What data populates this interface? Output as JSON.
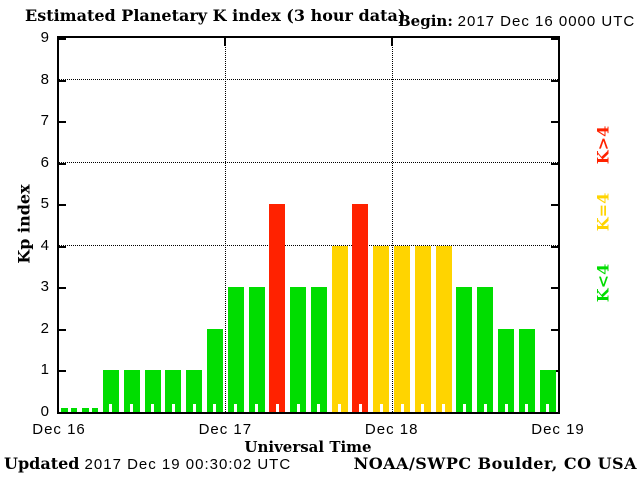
{
  "header": {
    "title": "Estimated Planetary K index (3 hour data)",
    "begin_label": "Begin:",
    "begin_value": "2017 Dec 16 0000 UTC"
  },
  "footer": {
    "updated_label": "Updated",
    "updated_value": "2017 Dec 19 00:30:02 UTC",
    "credit": "NOAA/SWPC Boulder, CO USA"
  },
  "chart_data": {
    "type": "bar",
    "title": "Estimated Planetary K index (3 hour data)",
    "xlabel": "Universal Time",
    "ylabel": "Kp index",
    "begin": "2017 Dec 16 0000 UTC",
    "hours_per_bar": 3,
    "ylim": [
      0,
      9
    ],
    "yticks": [
      0,
      1,
      2,
      3,
      4,
      5,
      6,
      7,
      8,
      9
    ],
    "grid_y_dotted": [
      4,
      6,
      8
    ],
    "x_day_labels": [
      "Dec 16",
      "Dec 17",
      "Dec 18",
      "Dec 19"
    ],
    "values": [
      0,
      0,
      1,
      1,
      1,
      1,
      1,
      2,
      3,
      3,
      5,
      3,
      3,
      4,
      5,
      4,
      4,
      4,
      4,
      3,
      3,
      2,
      2,
      1
    ],
    "color_rules": {
      "below_4": "#00dd00",
      "equal_4": "#ffd400",
      "above_4": "#ff2200"
    },
    "legend": [
      {
        "label": "K>4",
        "color": "#ff2200"
      },
      {
        "label": "K=4",
        "color": "#ffd400"
      },
      {
        "label": "K<4",
        "color": "#00dd00"
      }
    ],
    "legend_position": "right-rotated",
    "grid": true,
    "background": "#ffffff"
  }
}
